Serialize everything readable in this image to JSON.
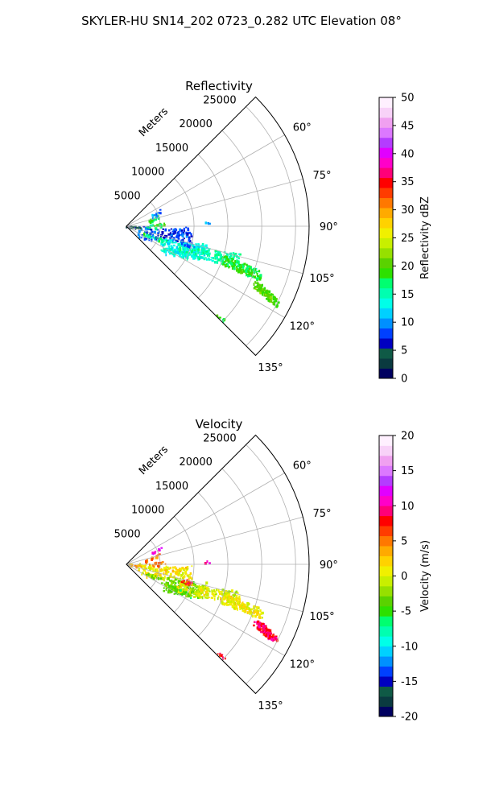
{
  "figure": {
    "title": "SKYLER-HU  SN14_202  0723_0.282 UTC Elevation 08°"
  },
  "chart_data": [
    {
      "type": "polar-sector",
      "title": "Reflectivity",
      "radial_label": "Meters",
      "radial_ticks": [
        5000,
        10000,
        15000,
        20000,
        25000
      ],
      "radial_tick_labels": [
        "5000",
        "10000",
        "15000",
        "20000",
        "25000"
      ],
      "rmax": 27000,
      "angle_range_deg": [
        45,
        135
      ],
      "angle_ticks": [
        60,
        75,
        90,
        105,
        120,
        135
      ],
      "angle_tick_labels": [
        "60°",
        "75°",
        "90°",
        "105°",
        "120°",
        "135°"
      ],
      "grid": true,
      "colorbar": {
        "label": "Reflectivity dBZ",
        "range": [
          0,
          50
        ],
        "ticks": [
          0,
          5,
          10,
          15,
          20,
          25,
          30,
          35,
          40,
          45,
          50
        ],
        "tick_labels": [
          "0",
          "5",
          "10",
          "15",
          "20",
          "25",
          "30",
          "35",
          "40",
          "45",
          "50"
        ],
        "colormap": [
          "#000060",
          "#0a3a40",
          "#0f5a46",
          "#0000c0",
          "#0040ff",
          "#0090ff",
          "#00d0ff",
          "#00ffe8",
          "#00ffb0",
          "#00ff70",
          "#2de000",
          "#5ad200",
          "#96e000",
          "#c8ef00",
          "#f0f000",
          "#ffd200",
          "#ffaa00",
          "#ff7800",
          "#ff3c00",
          "#ff0000",
          "#ff0078",
          "#ff00c8",
          "#e100ff",
          "#b43cff",
          "#dc78ff",
          "#f0a0f0",
          "#f8d2f8",
          "#fff0ff"
        ]
      },
      "echoes": [
        {
          "from_r": 2000,
          "to_r": 9500,
          "from_az": 108,
          "to_az": 96,
          "value": 8,
          "width": 16,
          "count": 150
        },
        {
          "from_r": 6000,
          "to_r": 12000,
          "from_az": 117,
          "to_az": 107,
          "value": 13,
          "width": 18,
          "count": 180
        },
        {
          "from_r": 8000,
          "to_r": 17000,
          "from_az": 112,
          "to_az": 106,
          "value": 15,
          "width": 14,
          "count": 160
        },
        {
          "from_r": 15000,
          "to_r": 21000,
          "from_az": 109,
          "to_az": 110,
          "value": 18,
          "width": 12,
          "count": 180
        },
        {
          "from_r": 21000,
          "to_r": 24500,
          "from_az": 114,
          "to_az": 117,
          "value": 20,
          "width": 8,
          "count": 130
        },
        {
          "from_r": 7000,
          "to_r": 10000,
          "from_az": 118,
          "to_az": 116,
          "value": 14,
          "width": 6,
          "count": 40
        },
        {
          "from_r": 3000,
          "to_r": 6000,
          "from_az": 115,
          "to_az": 110,
          "value": 16,
          "width": 4,
          "count": 25
        },
        {
          "from_r": 3000,
          "to_r": 4500,
          "from_az": 80,
          "to_az": 72,
          "value": 18,
          "width": 4,
          "count": 15
        },
        {
          "from_r": 3500,
          "to_r": 5500,
          "from_az": 90,
          "to_az": 86,
          "value": 18,
          "width": 5,
          "count": 20
        },
        {
          "from_r": 4000,
          "to_r": 5200,
          "from_az": 68,
          "to_az": 64,
          "value": 10,
          "width": 3,
          "count": 10
        },
        {
          "from_r": 300,
          "to_r": 1800,
          "from_az": 98,
          "to_az": 92,
          "value": 5,
          "width": 3,
          "count": 18
        },
        {
          "from_r": 19000,
          "to_r": 19800,
          "from_az": 134,
          "to_az": 134,
          "value": 18,
          "width": 4,
          "count": 8
        },
        {
          "from_r": 11500,
          "to_r": 12000,
          "from_az": 89,
          "to_az": 87,
          "value": 10,
          "width": 2,
          "count": 4
        },
        {
          "from_r": 8500,
          "to_r": 10000,
          "from_az": 107,
          "to_az": 105,
          "value": 9,
          "width": 4,
          "count": 18
        }
      ]
    },
    {
      "type": "polar-sector",
      "title": "Velocity",
      "radial_label": "Meters",
      "radial_ticks": [
        5000,
        10000,
        15000,
        20000,
        25000
      ],
      "radial_tick_labels": [
        "5000",
        "10000",
        "15000",
        "20000",
        "25000"
      ],
      "rmax": 27000,
      "angle_range_deg": [
        45,
        135
      ],
      "angle_ticks": [
        60,
        75,
        90,
        105,
        120,
        135
      ],
      "angle_tick_labels": [
        "60°",
        "75°",
        "90°",
        "105°",
        "120°",
        "135°"
      ],
      "grid": true,
      "colorbar": {
        "label": "Velocity (m/s)",
        "range": [
          -20,
          20
        ],
        "ticks": [
          -20,
          -15,
          -10,
          -5,
          0,
          5,
          10,
          15,
          20
        ],
        "tick_labels": [
          "-20",
          "-15",
          "-10",
          "-5",
          "0",
          "5",
          "10",
          "15",
          "20"
        ],
        "colormap": [
          "#000060",
          "#0a3a40",
          "#0f5a46",
          "#0000c0",
          "#0040ff",
          "#0090ff",
          "#00d0ff",
          "#00ffe8",
          "#00ffb0",
          "#00ff70",
          "#2de000",
          "#5ad200",
          "#96e000",
          "#c8ef00",
          "#f0f000",
          "#ffd200",
          "#ffaa00",
          "#ff7800",
          "#ff3c00",
          "#ff0000",
          "#ff0078",
          "#ff00c8",
          "#e100ff",
          "#b43cff",
          "#dc78ff",
          "#f0a0f0",
          "#f8d2f8",
          "#fff0ff"
        ]
      },
      "echoes": [
        {
          "from_r": 2000,
          "to_r": 9500,
          "from_az": 108,
          "to_az": 96,
          "value": 1,
          "width": 16,
          "count": 150
        },
        {
          "from_r": 6000,
          "to_r": 12000,
          "from_az": 117,
          "to_az": 107,
          "value": -3,
          "width": 18,
          "count": 180
        },
        {
          "from_r": 8000,
          "to_r": 17000,
          "from_az": 112,
          "to_az": 106,
          "value": 0,
          "width": 14,
          "count": 160
        },
        {
          "from_r": 15000,
          "to_r": 21000,
          "from_az": 109,
          "to_az": 110,
          "value": 1,
          "width": 12,
          "count": 180
        },
        {
          "from_r": 21000,
          "to_r": 24500,
          "from_az": 114,
          "to_az": 117,
          "value": 9,
          "width": 8,
          "count": 130
        },
        {
          "from_r": 7000,
          "to_r": 10000,
          "from_az": 118,
          "to_az": 116,
          "value": -4,
          "width": 6,
          "count": 40
        },
        {
          "from_r": 3000,
          "to_r": 6000,
          "from_az": 115,
          "to_az": 110,
          "value": -2,
          "width": 4,
          "count": 25
        },
        {
          "from_r": 3000,
          "to_r": 4500,
          "from_az": 80,
          "to_az": 72,
          "value": 5,
          "width": 4,
          "count": 15
        },
        {
          "from_r": 3500,
          "to_r": 5500,
          "from_az": 90,
          "to_az": 86,
          "value": 5,
          "width": 5,
          "count": 20
        },
        {
          "from_r": 4000,
          "to_r": 5200,
          "from_az": 68,
          "to_az": 64,
          "value": 12,
          "width": 3,
          "count": 10
        },
        {
          "from_r": 300,
          "to_r": 1800,
          "from_az": 98,
          "to_az": 92,
          "value": 3,
          "width": 3,
          "count": 18
        },
        {
          "from_r": 19000,
          "to_r": 19800,
          "from_az": 134,
          "to_az": 134,
          "value": 8,
          "width": 4,
          "count": 8
        },
        {
          "from_r": 11500,
          "to_r": 12000,
          "from_az": 89,
          "to_az": 87,
          "value": 11,
          "width": 2,
          "count": 4
        },
        {
          "from_r": 8500,
          "to_r": 10000,
          "from_az": 107,
          "to_az": 105,
          "value": 7,
          "width": 4,
          "count": 18
        }
      ]
    }
  ]
}
